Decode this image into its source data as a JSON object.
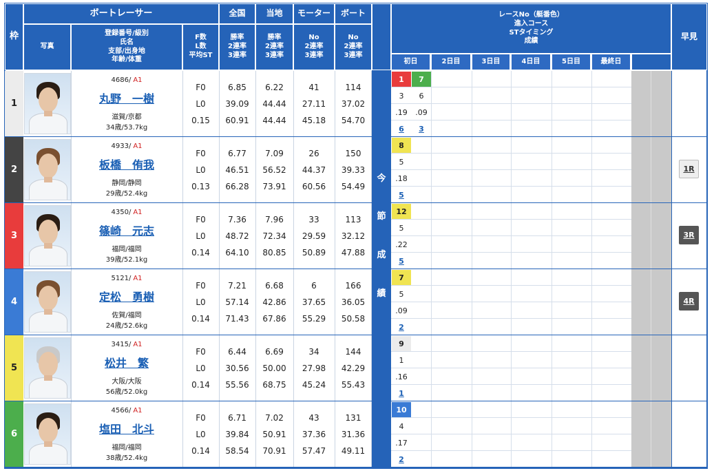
{
  "headers": {
    "frame": "枠",
    "boat_racer": "ボートレーサー",
    "photo": "写真",
    "reg_info": "登録番号/級別\n氏名\n支部/出身地\n年齢/体重",
    "flst": "F数\nL数\n平均ST",
    "nat_group": "全国",
    "loc_group": "当地",
    "motor_group": "モーター",
    "boat_group": "ボート",
    "nat_sub": "勝率\n2連率\n3連率",
    "loc_sub": "勝率\n2連率\n3連率",
    "motor_sub": "No\n2連率\n3連率",
    "boat_sub": "No\n2連率\n3連率",
    "race_info": "レースNo（艇番色）\n進入コース\nSTタイミング\n成績",
    "early": "早見",
    "days": [
      "初日",
      "2日目",
      "3日目",
      "4日目",
      "5日目",
      "最終日"
    ],
    "this_session": "今節成績"
  },
  "frame_colors": [
    "#ececec",
    "#444444",
    "#e83c3c",
    "#3a7bd5",
    "#f0e452",
    "#4cae4c"
  ],
  "racers": [
    {
      "waku": "1",
      "regno": "4686",
      "rank": "A1",
      "name": "丸野　一樹",
      "branch": "滋賀/京都",
      "agewt": "34歳/53.7kg",
      "f": "F0",
      "l": "L0",
      "st": "0.15",
      "nat": [
        "6.85",
        "39.09",
        "60.91"
      ],
      "loc": [
        "6.22",
        "44.44",
        "44.44"
      ],
      "motor": [
        "41",
        "27.11",
        "45.18"
      ],
      "boat": [
        "114",
        "37.02",
        "54.70"
      ],
      "early": ""
    },
    {
      "waku": "2",
      "regno": "4933",
      "rank": "A1",
      "name": "板橋　侑我",
      "branch": "静岡/静岡",
      "agewt": "29歳/52.4kg",
      "f": "F0",
      "l": "L0",
      "st": "0.13",
      "nat": [
        "6.77",
        "46.51",
        "66.28"
      ],
      "loc": [
        "7.09",
        "56.52",
        "73.91"
      ],
      "motor": [
        "26",
        "44.37",
        "60.56"
      ],
      "boat": [
        "150",
        "39.33",
        "54.49"
      ],
      "early": "1R"
    },
    {
      "waku": "3",
      "regno": "4350",
      "rank": "A1",
      "name": "篠崎　元志",
      "branch": "福岡/福岡",
      "agewt": "39歳/52.1kg",
      "f": "F0",
      "l": "L0",
      "st": "0.14",
      "nat": [
        "7.36",
        "48.72",
        "64.10"
      ],
      "loc": [
        "7.96",
        "72.34",
        "80.85"
      ],
      "motor": [
        "33",
        "29.59",
        "50.89"
      ],
      "boat": [
        "113",
        "32.12",
        "47.88"
      ],
      "early": "3R"
    },
    {
      "waku": "4",
      "regno": "5121",
      "rank": "A1",
      "name": "定松　勇樹",
      "branch": "佐賀/福岡",
      "agewt": "24歳/52.6kg",
      "f": "F0",
      "l": "L0",
      "st": "0.14",
      "nat": [
        "7.21",
        "57.14",
        "71.43"
      ],
      "loc": [
        "6.68",
        "42.86",
        "67.86"
      ],
      "motor": [
        "6",
        "37.65",
        "55.29"
      ],
      "boat": [
        "166",
        "36.05",
        "50.58"
      ],
      "early": "4R"
    },
    {
      "waku": "5",
      "regno": "3415",
      "rank": "A1",
      "name": "松井　繁",
      "branch": "大阪/大阪",
      "agewt": "56歳/52.0kg",
      "f": "F0",
      "l": "L0",
      "st": "0.14",
      "nat": [
        "6.44",
        "30.56",
        "55.56"
      ],
      "loc": [
        "6.69",
        "50.00",
        "68.75"
      ],
      "motor": [
        "34",
        "27.98",
        "45.24"
      ],
      "boat": [
        "144",
        "42.29",
        "55.43"
      ],
      "early": ""
    },
    {
      "waku": "6",
      "regno": "4566",
      "rank": "A1",
      "name": "塩田　北斗",
      "branch": "福岡/福岡",
      "agewt": "38歳/52.4kg",
      "f": "F0",
      "l": "L0",
      "st": "0.14",
      "nat": [
        "6.71",
        "39.84",
        "58.54"
      ],
      "loc": [
        "7.02",
        "50.91",
        "70.91"
      ],
      "motor": [
        "43",
        "37.36",
        "57.47"
      ],
      "boat": [
        "131",
        "31.36",
        "49.11"
      ],
      "early": ""
    }
  ],
  "results": [
    [
      {
        "race": "1",
        "race_color": "#e83c3c",
        "race_text_color": "#ffffff",
        "course": "3",
        "st": ".19",
        "rank": "6"
      },
      {
        "race": "7",
        "race_color": "#4cae4c",
        "race_text_color": "#ffffff",
        "course": "6",
        "st": ".09",
        "rank": "3"
      }
    ],
    [
      {
        "race": "8",
        "race_color": "#f0e452",
        "race_text_color": "#222222",
        "course": "5",
        "st": ".18",
        "rank": "5"
      }
    ],
    [
      {
        "race": "12",
        "race_color": "#f0e452",
        "race_text_color": "#222222",
        "course": "5",
        "st": ".22",
        "rank": "5"
      }
    ],
    [
      {
        "race": "7",
        "race_color": "#f0e452",
        "race_text_color": "#222222",
        "course": "5",
        "st": ".09",
        "rank": "2"
      }
    ],
    [
      {
        "race": "9",
        "race_color": "#ececec",
        "race_text_color": "#222222",
        "course": "1",
        "st": ".16",
        "rank": "1"
      }
    ],
    [
      {
        "race": "10",
        "race_color": "#3a7bd5",
        "race_text_color": "#ffffff",
        "course": "4",
        "st": ".17",
        "rank": "2"
      }
    ]
  ],
  "colors": {
    "header_blue": "#2563b8",
    "grid_blue": "#2563b8",
    "gray_col": "#c9c9c9",
    "link": "#1a5fb4"
  }
}
